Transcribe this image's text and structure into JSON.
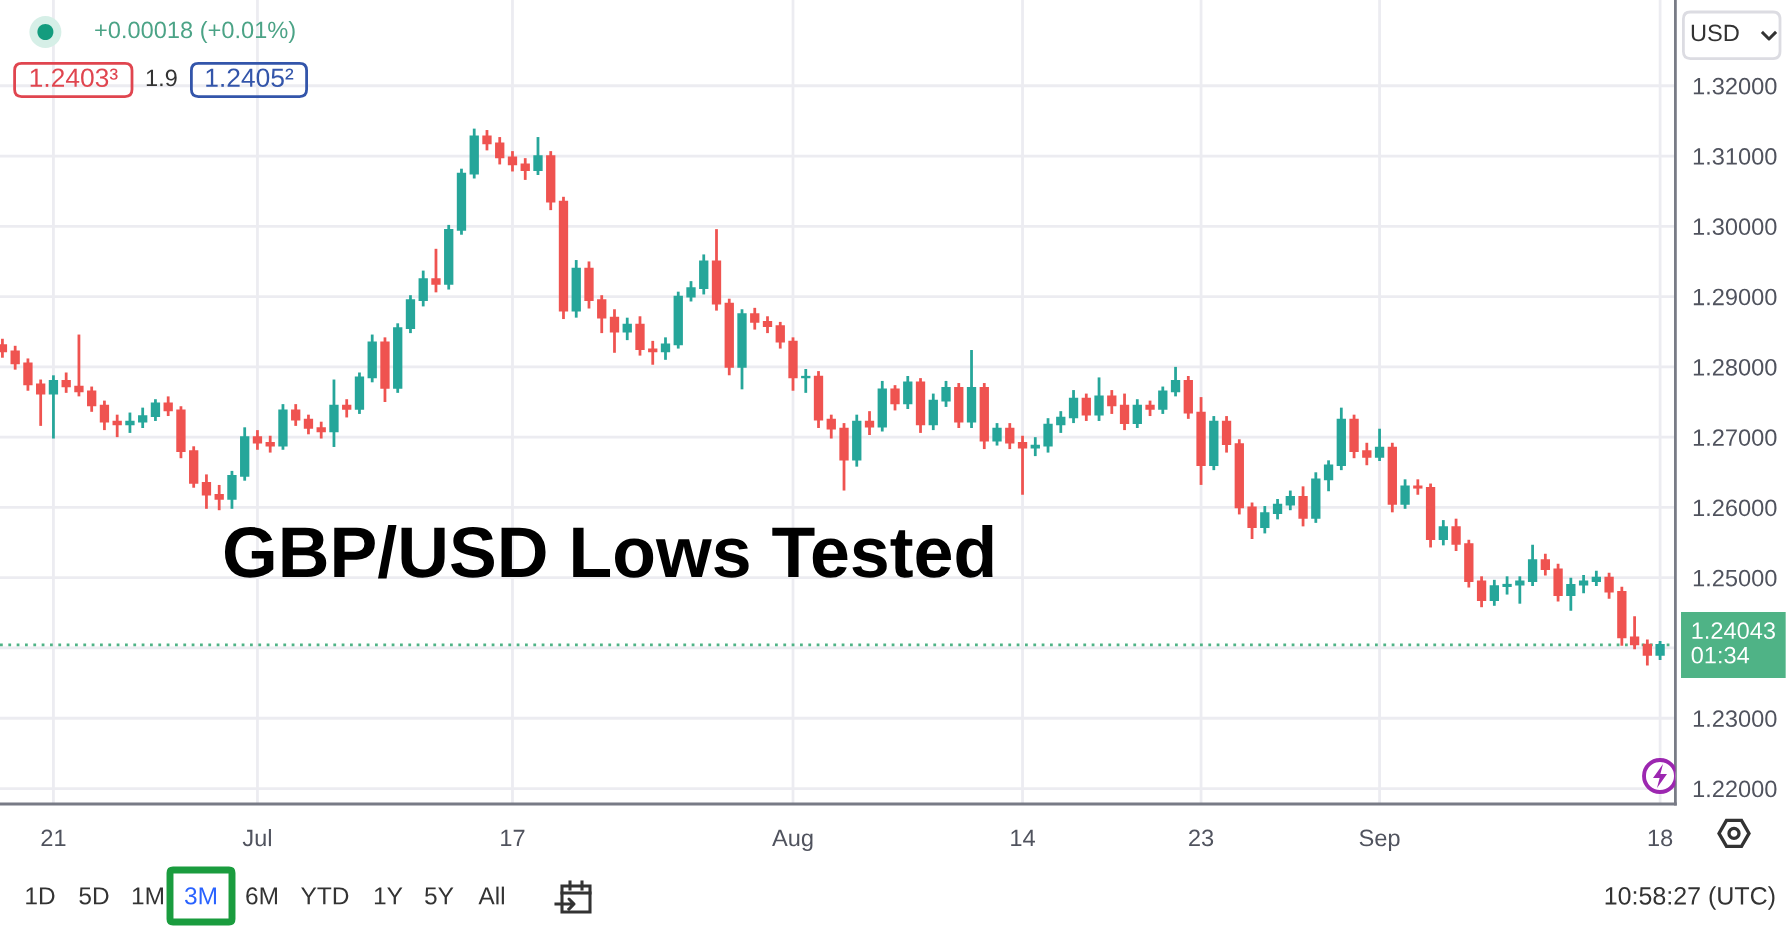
{
  "chart_data": {
    "type": "candlestick",
    "title": "GBP/USD Lows Tested",
    "categories": [
      null,
      null,
      null,
      null,
      "21",
      null,
      null,
      null,
      null,
      null,
      null,
      null,
      null,
      null,
      null,
      null,
      null,
      null,
      null,
      null,
      "Jul",
      null,
      null,
      null,
      null,
      null,
      null,
      null,
      null,
      null,
      null,
      null,
      null,
      null,
      null,
      null,
      null,
      null,
      null,
      null,
      "17",
      null,
      null,
      null,
      null,
      null,
      null,
      null,
      null,
      null,
      null,
      null,
      null,
      null,
      null,
      null,
      null,
      null,
      null,
      null,
      null,
      null,
      "Aug",
      null,
      null,
      null,
      null,
      null,
      null,
      null,
      null,
      null,
      null,
      null,
      null,
      null,
      null,
      null,
      null,
      null,
      "14",
      null,
      null,
      null,
      null,
      null,
      null,
      null,
      null,
      null,
      null,
      null,
      null,
      null,
      "23",
      null,
      null,
      null,
      null,
      null,
      null,
      null,
      null,
      null,
      null,
      null,
      null,
      null,
      "Sep",
      null,
      null,
      null,
      null,
      null,
      null,
      null,
      null,
      null,
      null,
      null,
      null,
      null,
      null,
      null,
      null,
      null,
      null,
      null,
      null,
      null,
      "18"
    ],
    "ohlc": [
      [
        1.2831,
        1.2838,
        1.2815,
        1.2822
      ],
      [
        1.2822,
        1.2828,
        1.2798,
        1.2805
      ],
      [
        1.2805,
        1.281,
        1.2768,
        1.2775
      ],
      [
        1.2775,
        1.278,
        1.2718,
        1.2762
      ],
      [
        1.2762,
        1.2786,
        1.27,
        1.278
      ],
      [
        1.278,
        1.279,
        1.2765,
        1.2772
      ],
      [
        1.2772,
        1.2844,
        1.276,
        1.2765
      ],
      [
        1.2765,
        1.277,
        1.2738,
        1.2745
      ],
      [
        1.2745,
        1.275,
        1.2712,
        1.2722
      ],
      [
        1.2722,
        1.273,
        1.2702,
        1.2718
      ],
      [
        1.2718,
        1.2733,
        1.2708,
        1.2722
      ],
      [
        1.2722,
        1.274,
        1.2715,
        1.273
      ],
      [
        1.273,
        1.2752,
        1.2725,
        1.2748
      ],
      [
        1.2748,
        1.2756,
        1.2732,
        1.2738
      ],
      [
        1.2738,
        1.2742,
        1.2672,
        1.268
      ],
      [
        1.268,
        1.2685,
        1.263,
        1.2635
      ],
      [
        1.2635,
        1.2645,
        1.26,
        1.2618
      ],
      [
        1.2618,
        1.263,
        1.2598,
        1.2612
      ],
      [
        1.2612,
        1.265,
        1.26,
        1.2645
      ],
      [
        1.2645,
        1.2712,
        1.264,
        1.27
      ],
      [
        1.27,
        1.2708,
        1.2684,
        1.2692
      ],
      [
        1.2692,
        1.27,
        1.268,
        1.2688
      ],
      [
        1.2688,
        1.2745,
        1.2684,
        1.2738
      ],
      [
        1.2738,
        1.2745,
        1.2718,
        1.2725
      ],
      [
        1.2725,
        1.273,
        1.2706,
        1.2713
      ],
      [
        1.2713,
        1.272,
        1.27,
        1.2708
      ],
      [
        1.2708,
        1.278,
        1.2688,
        1.2745
      ],
      [
        1.2745,
        1.2752,
        1.273,
        1.274
      ],
      [
        1.274,
        1.279,
        1.2735,
        1.2785
      ],
      [
        1.2785,
        1.2844,
        1.278,
        1.2835
      ],
      [
        1.2835,
        1.284,
        1.2752,
        1.277
      ],
      [
        1.277,
        1.286,
        1.2765,
        1.2855
      ],
      [
        1.2855,
        1.29,
        1.285,
        1.2895
      ],
      [
        1.2895,
        1.2935,
        1.2888,
        1.2925
      ],
      [
        1.2925,
        1.2966,
        1.2908,
        1.2918
      ],
      [
        1.2918,
        1.3,
        1.2912,
        1.2995
      ],
      [
        1.2995,
        1.308,
        1.299,
        1.3075
      ],
      [
        1.3075,
        1.3137,
        1.307,
        1.3128
      ],
      [
        1.3128,
        1.3135,
        1.311,
        1.3118
      ],
      [
        1.3118,
        1.3125,
        1.309,
        1.3098
      ],
      [
        1.3098,
        1.3105,
        1.308,
        1.3088
      ],
      [
        1.3088,
        1.3095,
        1.3068,
        1.308
      ],
      [
        1.308,
        1.3125,
        1.3075,
        1.31
      ],
      [
        1.31,
        1.3105,
        1.3025,
        1.3035
      ],
      [
        1.3035,
        1.304,
        1.287,
        1.288
      ],
      [
        1.288,
        1.295,
        1.2872,
        1.294
      ],
      [
        1.294,
        1.2948,
        1.2885,
        1.2895
      ],
      [
        1.2895,
        1.29,
        1.285,
        1.287
      ],
      [
        1.287,
        1.288,
        1.2822,
        1.285
      ],
      [
        1.285,
        1.2868,
        1.284,
        1.286
      ],
      [
        1.286,
        1.287,
        1.2818,
        1.2825
      ],
      [
        1.2825,
        1.2835,
        1.2805,
        1.2822
      ],
      [
        1.2822,
        1.284,
        1.2812,
        1.2832
      ],
      [
        1.2832,
        1.2905,
        1.2828,
        1.29
      ],
      [
        1.29,
        1.292,
        1.2895,
        1.2912
      ],
      [
        1.2912,
        1.2958,
        1.2905,
        1.295
      ],
      [
        1.295,
        1.2994,
        1.2882,
        1.289
      ],
      [
        1.289,
        1.2895,
        1.279,
        1.28
      ],
      [
        1.28,
        1.288,
        1.277,
        1.2875
      ],
      [
        1.2875,
        1.2882,
        1.2855,
        1.2864
      ],
      [
        1.2864,
        1.287,
        1.285,
        1.2858
      ],
      [
        1.2858,
        1.2862,
        1.2828,
        1.2836
      ],
      [
        1.2836,
        1.284,
        1.2768,
        1.2785
      ],
      [
        1.2785,
        1.2795,
        1.2765,
        1.2786
      ],
      [
        1.2786,
        1.2792,
        1.2715,
        1.2725
      ],
      [
        1.2725,
        1.273,
        1.27,
        1.2712
      ],
      [
        1.2712,
        1.2718,
        1.2626,
        1.2668
      ],
      [
        1.2668,
        1.273,
        1.266,
        1.2722
      ],
      [
        1.2722,
        1.2735,
        1.2705,
        1.2715
      ],
      [
        1.2715,
        1.2778,
        1.271,
        1.2768
      ],
      [
        1.2768,
        1.2772,
        1.274,
        1.2748
      ],
      [
        1.2748,
        1.2785,
        1.2742,
        1.2778
      ],
      [
        1.2778,
        1.2782,
        1.2708,
        1.2718
      ],
      [
        1.2718,
        1.276,
        1.2712,
        1.2752
      ],
      [
        1.2752,
        1.2778,
        1.2745,
        1.277
      ],
      [
        1.277,
        1.2775,
        1.2715,
        1.2722
      ],
      [
        1.2722,
        1.2822,
        1.2715,
        1.277
      ],
      [
        1.277,
        1.2775,
        1.2685,
        1.2695
      ],
      [
        1.2695,
        1.2718,
        1.269,
        1.2712
      ],
      [
        1.2712,
        1.2718,
        1.2685,
        1.2692
      ],
      [
        1.2692,
        1.27,
        1.262,
        1.2685
      ],
      [
        1.2685,
        1.2698,
        1.2675,
        1.2688
      ],
      [
        1.2688,
        1.2725,
        1.268,
        1.2718
      ],
      [
        1.2718,
        1.2735,
        1.2708,
        1.2728
      ],
      [
        1.2728,
        1.2765,
        1.2722,
        1.2755
      ],
      [
        1.2755,
        1.276,
        1.2725,
        1.2732
      ],
      [
        1.2732,
        1.2783,
        1.2725,
        1.2758
      ],
      [
        1.2758,
        1.2765,
        1.2735,
        1.2745
      ],
      [
        1.2745,
        1.276,
        1.2712,
        1.272
      ],
      [
        1.272,
        1.2752,
        1.2715,
        1.2745
      ],
      [
        1.2745,
        1.275,
        1.2732,
        1.274
      ],
      [
        1.274,
        1.277,
        1.2735,
        1.2765
      ],
      [
        1.2765,
        1.2798,
        1.276,
        1.278
      ],
      [
        1.278,
        1.2785,
        1.2728,
        1.2735
      ],
      [
        1.2735,
        1.2755,
        1.2634,
        1.266
      ],
      [
        1.266,
        1.2728,
        1.2655,
        1.2722
      ],
      [
        1.2722,
        1.2728,
        1.268,
        1.269
      ],
      [
        1.269,
        1.2695,
        1.2592,
        1.26
      ],
      [
        1.26,
        1.2605,
        1.2557,
        1.2572
      ],
      [
        1.2572,
        1.26,
        1.2565,
        1.2592
      ],
      [
        1.2592,
        1.261,
        1.2585,
        1.2604
      ],
      [
        1.2604,
        1.2622,
        1.2598,
        1.2615
      ],
      [
        1.2615,
        1.2628,
        1.2575,
        1.2585
      ],
      [
        1.2585,
        1.2648,
        1.258,
        1.264
      ],
      [
        1.264,
        1.2665,
        1.2625,
        1.266
      ],
      [
        1.266,
        1.274,
        1.2655,
        1.2725
      ],
      [
        1.2725,
        1.273,
        1.2672,
        1.268
      ],
      [
        1.268,
        1.269,
        1.2662,
        1.2672
      ],
      [
        1.2672,
        1.271,
        1.2668,
        1.2685
      ],
      [
        1.2685,
        1.269,
        1.2595,
        1.2605
      ],
      [
        1.2605,
        1.2638,
        1.26,
        1.263
      ],
      [
        1.263,
        1.2638,
        1.262,
        1.2628
      ],
      [
        1.2628,
        1.2632,
        1.2545,
        1.2555
      ],
      [
        1.2555,
        1.258,
        1.2548,
        1.2572
      ],
      [
        1.2572,
        1.2582,
        1.254,
        1.2548
      ],
      [
        1.2548,
        1.2552,
        1.2488,
        1.2495
      ],
      [
        1.2495,
        1.25,
        1.246,
        1.2468
      ],
      [
        1.2468,
        1.2495,
        1.2462,
        1.2488
      ],
      [
        1.2488,
        1.25,
        1.2478,
        1.249
      ],
      [
        1.249,
        1.25,
        1.2465,
        1.2495
      ],
      [
        1.2495,
        1.2545,
        1.249,
        1.2525
      ],
      [
        1.2525,
        1.2532,
        1.2505,
        1.2512
      ],
      [
        1.2512,
        1.2518,
        1.2468,
        1.2475
      ],
      [
        1.2475,
        1.2498,
        1.2455,
        1.249
      ],
      [
        1.249,
        1.2502,
        1.248,
        1.2495
      ],
      [
        1.2495,
        1.2508,
        1.249,
        1.25
      ],
      [
        1.25,
        1.2505,
        1.2472,
        1.248
      ],
      [
        1.248,
        1.2485,
        1.2405,
        1.2415
      ],
      [
        1.2415,
        1.2443,
        1.24,
        1.2405
      ],
      [
        1.2405,
        1.241,
        1.2377,
        1.239
      ],
      [
        1.239,
        1.2408,
        1.2385,
        1.24043
      ]
    ],
    "colors": [
      "#ef5350",
      "#ef5350",
      "#ef5350",
      "#ef5350",
      "#26a69a",
      "#ef5350",
      "#ef5350",
      "#ef5350",
      "#ef5350",
      "#ef5350",
      "#26a69a",
      "#26a69a",
      "#26a69a",
      "#ef5350",
      "#ef5350",
      "#ef5350",
      "#ef5350",
      "#ef5350",
      "#26a69a",
      "#26a69a",
      "#ef5350",
      "#ef5350",
      "#26a69a",
      "#ef5350",
      "#ef5350",
      "#ef5350",
      "#26a69a",
      "#ef5350",
      "#26a69a",
      "#26a69a",
      "#ef5350",
      "#26a69a",
      "#26a69a",
      "#26a69a",
      "#ef5350",
      "#26a69a",
      "#26a69a",
      "#26a69a",
      "#ef5350",
      "#ef5350",
      "#ef5350",
      "#ef5350",
      "#26a69a",
      "#ef5350",
      "#ef5350",
      "#26a69a",
      "#ef5350",
      "#ef5350",
      "#ef5350",
      "#26a69a",
      "#ef5350",
      "#ef5350",
      "#26a69a",
      "#26a69a",
      "#26a69a",
      "#26a69a",
      "#ef5350",
      "#ef5350",
      "#26a69a",
      "#ef5350",
      "#ef5350",
      "#ef5350",
      "#ef5350",
      "#26a69a",
      "#ef5350",
      "#ef5350",
      "#ef5350",
      "#26a69a",
      "#ef5350",
      "#26a69a",
      "#ef5350",
      "#26a69a",
      "#ef5350",
      "#26a69a",
      "#26a69a",
      "#ef5350",
      "#26a69a",
      "#ef5350",
      "#26a69a",
      "#ef5350",
      "#ef5350",
      "#26a69a",
      "#26a69a",
      "#26a69a",
      "#26a69a",
      "#ef5350",
      "#26a69a",
      "#ef5350",
      "#ef5350",
      "#26a69a",
      "#ef5350",
      "#26a69a",
      "#26a69a",
      "#ef5350",
      "#ef5350",
      "#26a69a",
      "#ef5350",
      "#ef5350",
      "#ef5350",
      "#26a69a",
      "#26a69a",
      "#26a69a",
      "#ef5350",
      "#26a69a",
      "#26a69a",
      "#26a69a",
      "#ef5350",
      "#ef5350",
      "#26a69a",
      "#ef5350",
      "#26a69a",
      "#ef5350",
      "#ef5350",
      "#26a69a",
      "#ef5350",
      "#ef5350",
      "#ef5350",
      "#26a69a",
      "#26a69a",
      "#26a69a",
      "#26a69a",
      "#ef5350",
      "#ef5350",
      "#26a69a",
      "#26a69a",
      "#26a69a",
      "#ef5350",
      "#ef5350",
      "#ef5350",
      "#ef5350",
      "#26a69a"
    ],
    "ylim": [
      1.2178,
      1.3322
    ],
    "yticks": [
      {
        "value": 1.22,
        "label": "1.22000"
      },
      {
        "value": 1.23,
        "label": "1.23000"
      },
      {
        "value": 1.24,
        "label": null
      },
      {
        "value": 1.25,
        "label": "1.25000"
      },
      {
        "value": 1.26,
        "label": "1.26000"
      },
      {
        "value": 1.27,
        "label": "1.27000"
      },
      {
        "value": 1.28,
        "label": "1.28000"
      },
      {
        "value": 1.29,
        "label": "1.29000"
      },
      {
        "value": 1.3,
        "label": "1.30000"
      },
      {
        "value": 1.31,
        "label": "1.31000"
      },
      {
        "value": 1.32,
        "label": "1.32000"
      }
    ],
    "grid": true,
    "ref_lines": [
      {
        "axis": "y",
        "value": 1.24043,
        "label": "1.24043\n01:34",
        "color": "#4fb386",
        "line_style": "dotted"
      }
    ],
    "annotations": [
      "+0.00018 (+0.01%)",
      "1.2403³",
      "1.9",
      "1.2405²",
      "USD",
      "1D",
      "5D",
      "1M",
      "3M",
      "6M",
      "YTD",
      "1Y",
      "5Y",
      "All",
      "10:58:27 (UTC)"
    ]
  }
}
